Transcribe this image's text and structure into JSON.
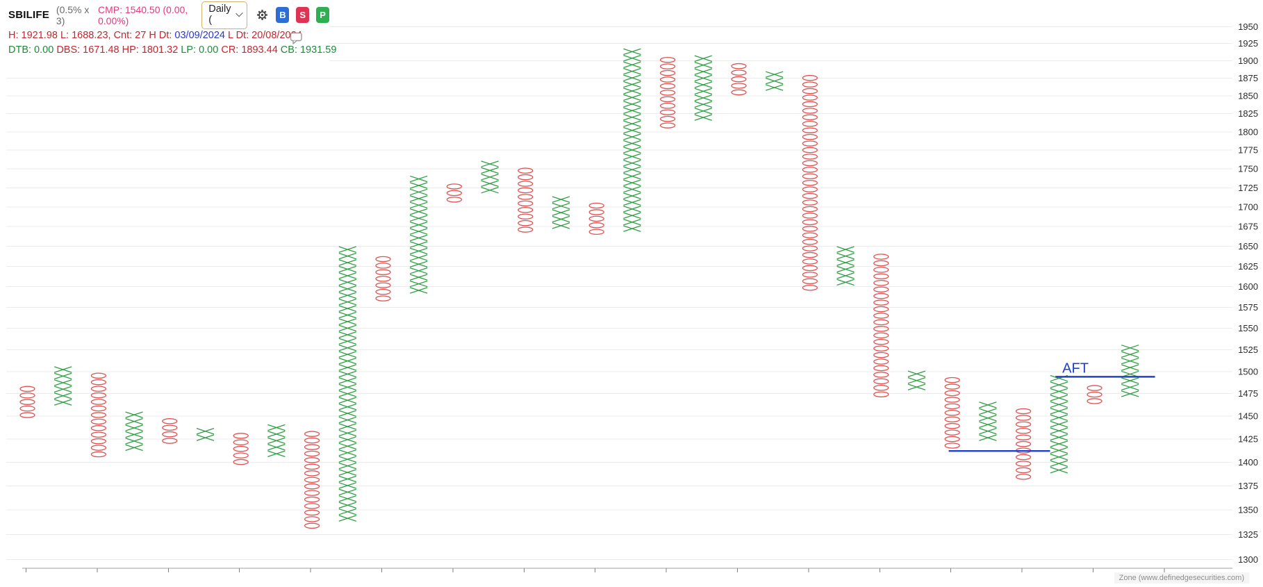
{
  "header": {
    "symbol": "SBILIFE",
    "params": "(0.5% x 3)",
    "cmp": "CMP: 1540.50 (0.00, 0.00%)",
    "timeframe": "Daily (",
    "buy_label": "B",
    "sell_label": "S",
    "p_label": "P",
    "stats_line1": [
      {
        "text": "H: 1921.98 L: 1688.23, Cnt: 27 H Dt: ",
        "color": "#c2262f"
      },
      {
        "text": "03/09/2024",
        "color": "#2936cc"
      },
      {
        "text": " L Dt: ",
        "color": "#c2262f"
      },
      {
        "text": "20/08/2024",
        "color": "#c2262f"
      }
    ],
    "stats_line2": [
      {
        "text": "DTB: 0.00 ",
        "color": "#1d8a3a"
      },
      {
        "text": "DBS: 1671.48 ",
        "color": "#c2262f"
      },
      {
        "text": "HP: 1801.32 ",
        "color": "#c2262f"
      },
      {
        "text": "LP: 0.00 ",
        "color": "#1d8a3a"
      },
      {
        "text": "CR: 1893.44 ",
        "color": "#c2262f"
      },
      {
        "text": "CB: 1931.59",
        "color": "#1d8a3a"
      }
    ]
  },
  "watermark": "Zone (www.definedgesecurities.com)",
  "chart_data": {
    "type": "point-and-figure",
    "symbol": "SBILIFE",
    "box_size_pct": 0.5,
    "reversal": 3,
    "timeframe": "Daily",
    "y_scale": "log",
    "price_max": 1950,
    "price_min": 1300,
    "y_ticks": [
      1950,
      1925,
      1900,
      1875,
      1850,
      1825,
      1800,
      1775,
      1750,
      1725,
      1700,
      1675,
      1650,
      1625,
      1600,
      1575,
      1550,
      1525,
      1500,
      1475,
      1450,
      1425,
      1400,
      1375,
      1350,
      1325,
      1300
    ],
    "columns": [
      {
        "t": "O",
        "hi": 1484,
        "lo": 1448
      },
      {
        "t": "X",
        "hi": 1506,
        "lo": 1459
      },
      {
        "t": "O",
        "hi": 1499,
        "lo": 1404
      },
      {
        "t": "X",
        "hi": 1455,
        "lo": 1412
      },
      {
        "t": "O",
        "hi": 1448,
        "lo": 1417
      },
      {
        "t": "X",
        "hi": 1437,
        "lo": 1420
      },
      {
        "t": "O",
        "hi": 1432,
        "lo": 1396
      },
      {
        "t": "X",
        "hi": 1441,
        "lo": 1404
      },
      {
        "t": "O",
        "hi": 1434,
        "lo": 1329
      },
      {
        "t": "X",
        "hi": 1650,
        "lo": 1337
      },
      {
        "t": "O",
        "hi": 1638,
        "lo": 1584
      },
      {
        "t": "X",
        "hi": 1741,
        "lo": 1588
      },
      {
        "t": "O",
        "hi": 1731,
        "lo": 1708
      },
      {
        "t": "X",
        "hi": 1761,
        "lo": 1714
      },
      {
        "t": "O",
        "hi": 1752,
        "lo": 1664
      },
      {
        "t": "X",
        "hi": 1714,
        "lo": 1672
      },
      {
        "t": "O",
        "hi": 1706,
        "lo": 1664
      },
      {
        "t": "X",
        "hi": 1918,
        "lo": 1672
      },
      {
        "t": "O",
        "hi": 1906,
        "lo": 1804
      },
      {
        "t": "X",
        "hi": 1908,
        "lo": 1813
      },
      {
        "t": "O",
        "hi": 1897,
        "lo": 1846
      },
      {
        "t": "X",
        "hi": 1885,
        "lo": 1858
      },
      {
        "t": "O",
        "hi": 1880,
        "lo": 1591
      },
      {
        "t": "X",
        "hi": 1650,
        "lo": 1598
      },
      {
        "t": "O",
        "hi": 1641,
        "lo": 1470
      },
      {
        "t": "X",
        "hi": 1501,
        "lo": 1479
      },
      {
        "t": "O",
        "hi": 1494,
        "lo": 1415
      },
      {
        "t": "X",
        "hi": 1466,
        "lo": 1423
      },
      {
        "t": "O",
        "hi": 1459,
        "lo": 1379
      },
      {
        "t": "X",
        "hi": 1496,
        "lo": 1386
      },
      {
        "t": "O",
        "hi": 1485,
        "lo": 1466
      },
      {
        "t": "X",
        "hi": 1531,
        "lo": 1470
      }
    ],
    "trendlines": [
      {
        "price": 1412,
        "from_col": 25.9,
        "to_col": 28.75,
        "label": ""
      },
      {
        "price": 1494,
        "from_col": 28.9,
        "to_col": 31.7,
        "label": "AFT"
      }
    ],
    "colors": {
      "x": "#2f9e44",
      "o": "#e05151",
      "trendline": "#2040cc",
      "grid": "#ebebeb"
    }
  }
}
